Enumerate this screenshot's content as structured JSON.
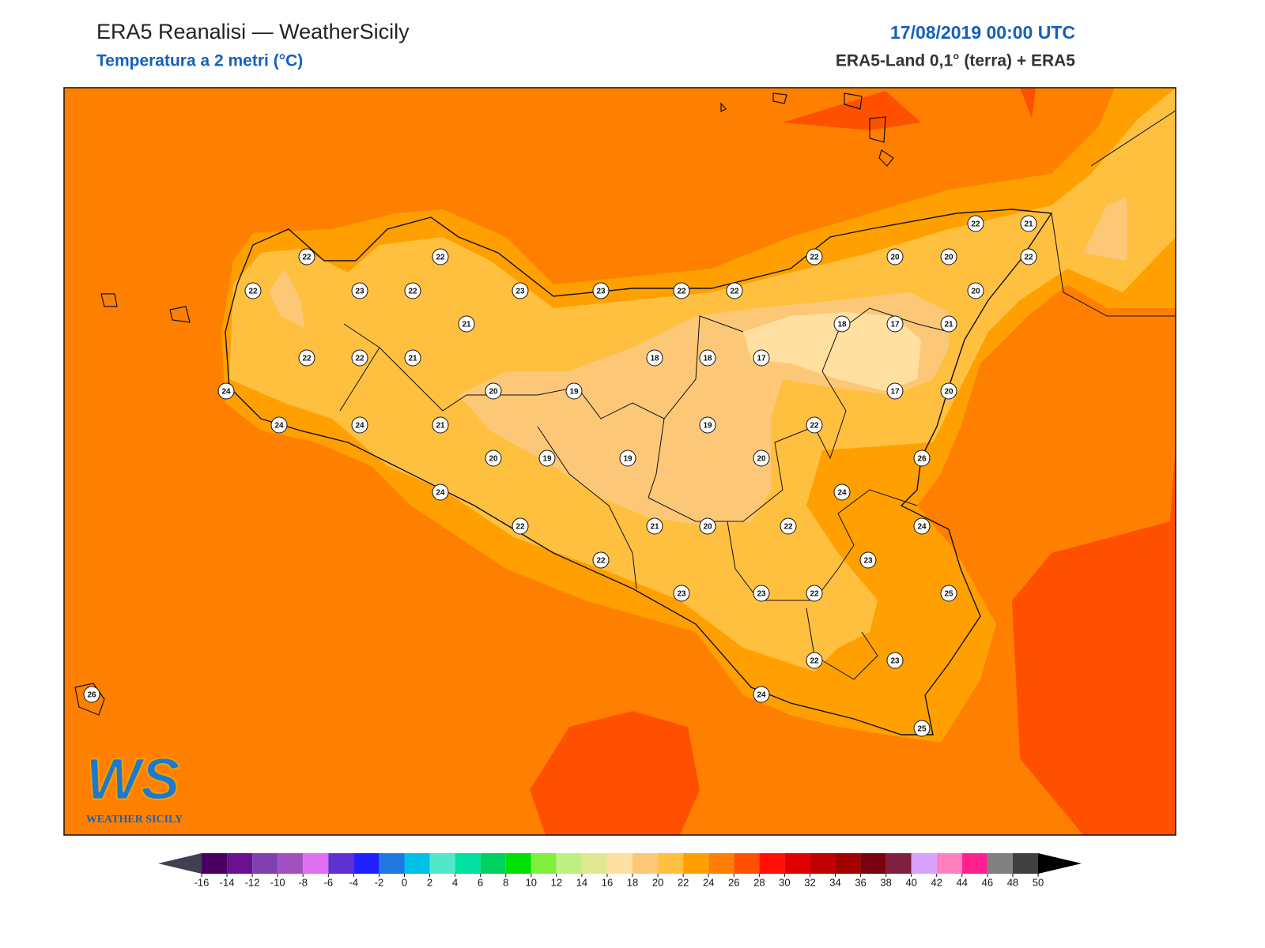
{
  "header": {
    "title": "ERA5 Reanalisi — WeatherSicily",
    "subtitle": "Temperatura a 2 metri (°C)",
    "date": "17/08/2019 00:00 UTC",
    "source": "ERA5-Land 0,1° (terra) + ERA5"
  },
  "logo": {
    "mark": "WS",
    "text": "WEATHER SICILY"
  },
  "stations": [
    22,
    22,
    22,
    23,
    22,
    23,
    23,
    22,
    22,
    22,
    20,
    20,
    22,
    21,
    22,
    20,
    21,
    18,
    17,
    21,
    22,
    22,
    21,
    18,
    18,
    17,
    24,
    20,
    19,
    17,
    20,
    24,
    24,
    21,
    19,
    22,
    20,
    19,
    19,
    20,
    26,
    24,
    24,
    22,
    21,
    20,
    22,
    24,
    22,
    23,
    23,
    23,
    22,
    25,
    22,
    23,
    24,
    25,
    26
  ],
  "colorbar": {
    "ticks": [
      -16,
      -14,
      -12,
      -10,
      -8,
      -6,
      -4,
      -2,
      0,
      2,
      4,
      6,
      8,
      10,
      12,
      14,
      16,
      18,
      20,
      22,
      24,
      26,
      28,
      30,
      32,
      34,
      36,
      38,
      40,
      42,
      44,
      46,
      48,
      50
    ],
    "colors": [
      "#4a0060",
      "#6a1090",
      "#8040b0",
      "#a050c0",
      "#e070f0",
      "#6030d0",
      "#2020ff",
      "#1e78e0",
      "#00c0e8",
      "#50e8c8",
      "#00e0a0",
      "#00d060",
      "#00e000",
      "#80f040",
      "#c0f080",
      "#e0e890",
      "#ffe0a0",
      "#fcc878",
      "#ffc040",
      "#ffa000",
      "#ff8000",
      "#ff5000",
      "#ff1000",
      "#e00000",
      "#c00000",
      "#a00000",
      "#780010",
      "#802040",
      "#d8a0ff",
      "#ff80c0",
      "#ff2090",
      "#808080",
      "#404040"
    ],
    "under_color": "#404050",
    "over_color": "#000000"
  }
}
